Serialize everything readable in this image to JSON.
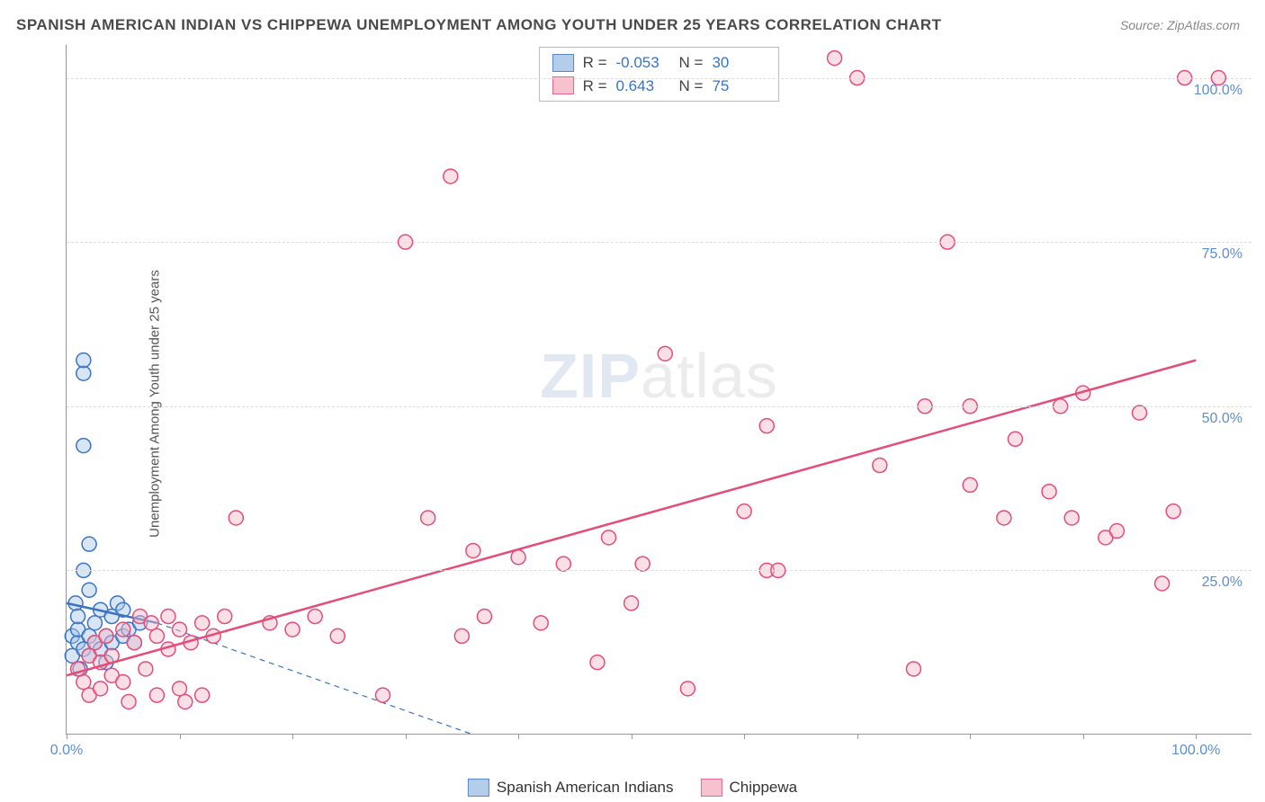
{
  "header": {
    "title": "SPANISH AMERICAN INDIAN VS CHIPPEWA UNEMPLOYMENT AMONG YOUTH UNDER 25 YEARS CORRELATION CHART",
    "source": "Source: ZipAtlas.com"
  },
  "chart": {
    "type": "scatter",
    "ylabel": "Unemployment Among Youth under 25 years",
    "xlim": [
      0,
      105
    ],
    "ylim": [
      0,
      105
    ],
    "xticks": [
      0,
      10,
      20,
      30,
      40,
      50,
      60,
      70,
      80,
      90,
      100
    ],
    "xtick_labels": {
      "0": "0.0%",
      "100": "100.0%"
    },
    "yticks": [
      25,
      50,
      75,
      100
    ],
    "ytick_labels": {
      "25": "25.0%",
      "50": "50.0%",
      "75": "75.0%",
      "100": "100.0%"
    },
    "grid_color": "#dddddd",
    "background": "#ffffff",
    "axis_color": "#999999",
    "marker_radius": 8,
    "marker_stroke_width": 1.5,
    "series": [
      {
        "name": "Spanish American Indians",
        "fill": "#a8c5e8",
        "stroke": "#3b74c4",
        "fill_opacity": 0.45,
        "r_value": "-0.053",
        "n_value": "30",
        "regression": {
          "x1": 0,
          "y1": 20,
          "x2": 8,
          "y2": 17,
          "dash_x2": 36,
          "dash_y2": 0,
          "width": 2.5
        },
        "points": [
          [
            0.5,
            15
          ],
          [
            0.5,
            12
          ],
          [
            0.8,
            20
          ],
          [
            1,
            14
          ],
          [
            1,
            16
          ],
          [
            1,
            18
          ],
          [
            1.2,
            10
          ],
          [
            1.5,
            13
          ],
          [
            1.5,
            25
          ],
          [
            1.5,
            55
          ],
          [
            1.5,
            57
          ],
          [
            1.5,
            44
          ],
          [
            2,
            12
          ],
          [
            2,
            15
          ],
          [
            2,
            22
          ],
          [
            2,
            29
          ],
          [
            2.5,
            14
          ],
          [
            2.5,
            17
          ],
          [
            3,
            13
          ],
          [
            3,
            19
          ],
          [
            3.5,
            11
          ],
          [
            3.5,
            15
          ],
          [
            4,
            14
          ],
          [
            4,
            18
          ],
          [
            4.5,
            20
          ],
          [
            5,
            15
          ],
          [
            5,
            19
          ],
          [
            5.5,
            16
          ],
          [
            6,
            14
          ],
          [
            6.5,
            17
          ]
        ]
      },
      {
        "name": "Chippewa",
        "fill": "#f5b8c8",
        "stroke": "#e44d7a",
        "fill_opacity": 0.45,
        "r_value": "0.643",
        "n_value": "75",
        "regression": {
          "x1": 0,
          "y1": 9,
          "x2": 100,
          "y2": 57,
          "width": 2.5
        },
        "points": [
          [
            1,
            10
          ],
          [
            1.5,
            8
          ],
          [
            2,
            12
          ],
          [
            2,
            6
          ],
          [
            2.5,
            14
          ],
          [
            3,
            7
          ],
          [
            3,
            11
          ],
          [
            3.5,
            15
          ],
          [
            4,
            9
          ],
          [
            4,
            12
          ],
          [
            5,
            8
          ],
          [
            5,
            16
          ],
          [
            5.5,
            5
          ],
          [
            6,
            14
          ],
          [
            6.5,
            18
          ],
          [
            7,
            10
          ],
          [
            7.5,
            17
          ],
          [
            8,
            6
          ],
          [
            8,
            15
          ],
          [
            9,
            13
          ],
          [
            9,
            18
          ],
          [
            10,
            7
          ],
          [
            10,
            16
          ],
          [
            10.5,
            5
          ],
          [
            11,
            14
          ],
          [
            12,
            17
          ],
          [
            12,
            6
          ],
          [
            13,
            15
          ],
          [
            14,
            18
          ],
          [
            15,
            33
          ],
          [
            18,
            17
          ],
          [
            20,
            16
          ],
          [
            22,
            18
          ],
          [
            24,
            15
          ],
          [
            28,
            6
          ],
          [
            30,
            75
          ],
          [
            32,
            33
          ],
          [
            34,
            85
          ],
          [
            35,
            15
          ],
          [
            36,
            28
          ],
          [
            37,
            18
          ],
          [
            40,
            27
          ],
          [
            42,
            17
          ],
          [
            44,
            26
          ],
          [
            47,
            11
          ],
          [
            48,
            30
          ],
          [
            50,
            20
          ],
          [
            51,
            26
          ],
          [
            53,
            58
          ],
          [
            55,
            7
          ],
          [
            60,
            34
          ],
          [
            62,
            25
          ],
          [
            62,
            47
          ],
          [
            63,
            25
          ],
          [
            68,
            103
          ],
          [
            70,
            100
          ],
          [
            72,
            41
          ],
          [
            75,
            10
          ],
          [
            76,
            50
          ],
          [
            78,
            75
          ],
          [
            80,
            38
          ],
          [
            80,
            50
          ],
          [
            83,
            33
          ],
          [
            84,
            45
          ],
          [
            87,
            37
          ],
          [
            88,
            50
          ],
          [
            89,
            33
          ],
          [
            90,
            52
          ],
          [
            92,
            30
          ],
          [
            93,
            31
          ],
          [
            95,
            49
          ],
          [
            97,
            23
          ],
          [
            98,
            34
          ],
          [
            99,
            100
          ],
          [
            102,
            100
          ]
        ]
      }
    ],
    "stats_box": {
      "r_label": "R =",
      "n_label": "N ="
    },
    "legend": {
      "items": [
        "Spanish American Indians",
        "Chippewa"
      ]
    },
    "watermark": {
      "part1": "ZIP",
      "part2": "atlas"
    }
  }
}
